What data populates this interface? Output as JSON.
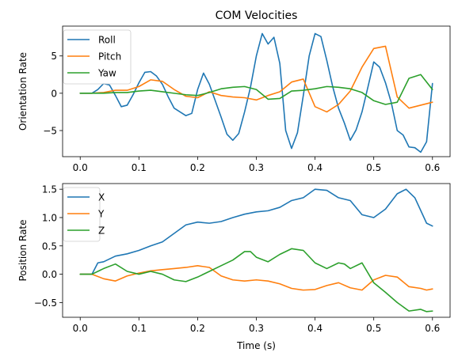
{
  "chart_data": [
    {
      "type": "line",
      "title": "COM Velocities",
      "xlabel": "",
      "ylabel": "Orientation Rate",
      "xlim": [
        -0.03,
        0.63
      ],
      "ylim": [
        -8.5,
        9.0
      ],
      "xticks": [
        0.0,
        0.1,
        0.2,
        0.3,
        0.4,
        0.5,
        0.6
      ],
      "xtick_labels": [
        "0.0",
        "0.1",
        "0.2",
        "0.3",
        "0.4",
        "0.5",
        "0.6"
      ],
      "yticks": [
        -5,
        0,
        5
      ],
      "ytick_labels": [
        "−5",
        "0",
        "5"
      ],
      "legend": "top-left",
      "series": [
        {
          "name": "Roll",
          "color": "#1f77b4",
          "x": [
            0.0,
            0.02,
            0.03,
            0.04,
            0.05,
            0.06,
            0.07,
            0.08,
            0.09,
            0.1,
            0.11,
            0.12,
            0.13,
            0.14,
            0.15,
            0.16,
            0.17,
            0.18,
            0.19,
            0.2,
            0.21,
            0.22,
            0.23,
            0.24,
            0.25,
            0.26,
            0.27,
            0.28,
            0.29,
            0.3,
            0.31,
            0.32,
            0.33,
            0.34,
            0.35,
            0.36,
            0.37,
            0.38,
            0.39,
            0.4,
            0.41,
            0.42,
            0.43,
            0.44,
            0.45,
            0.46,
            0.47,
            0.48,
            0.49,
            0.5,
            0.51,
            0.52,
            0.53,
            0.54,
            0.55,
            0.56,
            0.57,
            0.58,
            0.59,
            0.6
          ],
          "y": [
            0.0,
            0.0,
            0.5,
            1.3,
            1.1,
            -0.3,
            -1.8,
            -1.6,
            -0.2,
            1.4,
            2.8,
            2.9,
            2.3,
            1.2,
            -0.5,
            -2.0,
            -2.5,
            -3.0,
            -2.7,
            0.5,
            2.7,
            1.2,
            -1.0,
            -3.2,
            -5.5,
            -6.3,
            -5.4,
            -2.5,
            0.8,
            5.0,
            8.0,
            6.6,
            7.5,
            4.0,
            -5.0,
            -7.4,
            -5.3,
            -0.3,
            5.0,
            8.0,
            7.6,
            4.4,
            0.9,
            -2.0,
            -4.0,
            -6.3,
            -4.9,
            -2.5,
            0.8,
            4.2,
            3.5,
            1.4,
            -1.3,
            -5.0,
            -5.6,
            -7.2,
            -7.3,
            -7.9,
            -6.5,
            1.3
          ]
        },
        {
          "name": "Pitch",
          "color": "#ff7f0e",
          "x": [
            0.0,
            0.02,
            0.04,
            0.06,
            0.08,
            0.1,
            0.12,
            0.14,
            0.16,
            0.18,
            0.2,
            0.22,
            0.24,
            0.26,
            0.28,
            0.3,
            0.32,
            0.34,
            0.36,
            0.38,
            0.4,
            0.42,
            0.44,
            0.46,
            0.48,
            0.5,
            0.52,
            0.54,
            0.56,
            0.58,
            0.6
          ],
          "y": [
            0.0,
            0.0,
            0.1,
            0.4,
            0.4,
            0.9,
            1.8,
            1.6,
            0.5,
            -0.4,
            -0.6,
            0.2,
            -0.3,
            -0.5,
            -0.6,
            -0.9,
            -0.3,
            0.2,
            1.5,
            1.9,
            -1.8,
            -2.5,
            -1.5,
            0.3,
            3.5,
            6.0,
            6.3,
            -0.5,
            -2.0,
            -1.6,
            -1.2
          ]
        },
        {
          "name": "Yaw",
          "color": "#2ca02c",
          "x": [
            0.0,
            0.02,
            0.04,
            0.06,
            0.08,
            0.1,
            0.12,
            0.14,
            0.16,
            0.18,
            0.2,
            0.22,
            0.24,
            0.26,
            0.28,
            0.3,
            0.32,
            0.34,
            0.36,
            0.38,
            0.4,
            0.42,
            0.44,
            0.46,
            0.48,
            0.5,
            0.52,
            0.54,
            0.56,
            0.58,
            0.6
          ],
          "y": [
            0.0,
            0.0,
            0.0,
            0.1,
            0.1,
            0.3,
            0.4,
            0.2,
            0.0,
            -0.2,
            -0.3,
            0.1,
            0.6,
            0.8,
            0.9,
            0.5,
            -0.8,
            -0.7,
            0.3,
            0.4,
            0.6,
            0.9,
            0.8,
            0.6,
            0.1,
            -1.0,
            -1.5,
            -1.2,
            2.0,
            2.5,
            0.5
          ]
        }
      ]
    },
    {
      "type": "line",
      "title": "",
      "xlabel": "Time (s)",
      "ylabel": "Position Rate",
      "xlim": [
        -0.03,
        0.63
      ],
      "ylim": [
        -0.76,
        1.6
      ],
      "xticks": [
        0.0,
        0.1,
        0.2,
        0.3,
        0.4,
        0.5,
        0.6
      ],
      "xtick_labels": [
        "0.0",
        "0.1",
        "0.2",
        "0.3",
        "0.4",
        "0.5",
        "0.6"
      ],
      "yticks": [
        -0.5,
        0.0,
        0.5,
        1.0,
        1.5
      ],
      "ytick_labels": [
        "−0.5",
        "0.0",
        "0.5",
        "1.0",
        "1.5"
      ],
      "legend": "top-left",
      "series": [
        {
          "name": "X",
          "color": "#1f77b4",
          "x": [
            0.0,
            0.02,
            0.03,
            0.04,
            0.06,
            0.08,
            0.1,
            0.12,
            0.14,
            0.16,
            0.18,
            0.2,
            0.22,
            0.24,
            0.26,
            0.28,
            0.3,
            0.32,
            0.34,
            0.36,
            0.38,
            0.4,
            0.42,
            0.44,
            0.46,
            0.48,
            0.5,
            0.52,
            0.54,
            0.555,
            0.57,
            0.59,
            0.6
          ],
          "y": [
            0.0,
            0.0,
            0.2,
            0.22,
            0.32,
            0.36,
            0.42,
            0.5,
            0.57,
            0.72,
            0.87,
            0.92,
            0.9,
            0.93,
            1.0,
            1.06,
            1.1,
            1.12,
            1.18,
            1.3,
            1.35,
            1.5,
            1.48,
            1.35,
            1.3,
            1.05,
            1.0,
            1.15,
            1.42,
            1.5,
            1.35,
            0.9,
            0.85
          ]
        },
        {
          "name": "Y",
          "color": "#ff7f0e",
          "x": [
            0.0,
            0.02,
            0.04,
            0.06,
            0.08,
            0.1,
            0.12,
            0.14,
            0.16,
            0.18,
            0.2,
            0.22,
            0.24,
            0.26,
            0.28,
            0.3,
            0.32,
            0.34,
            0.36,
            0.38,
            0.4,
            0.42,
            0.44,
            0.46,
            0.48,
            0.5,
            0.52,
            0.54,
            0.56,
            0.58,
            0.59,
            0.6
          ],
          "y": [
            0.0,
            0.0,
            -0.08,
            -0.12,
            -0.03,
            0.02,
            0.06,
            0.08,
            0.1,
            0.12,
            0.15,
            0.12,
            -0.03,
            -0.1,
            -0.12,
            -0.1,
            -0.12,
            -0.17,
            -0.25,
            -0.28,
            -0.27,
            -0.2,
            -0.15,
            -0.24,
            -0.28,
            -0.1,
            -0.02,
            -0.05,
            -0.22,
            -0.25,
            -0.28,
            -0.26
          ]
        },
        {
          "name": "Z",
          "color": "#2ca02c",
          "x": [
            0.0,
            0.02,
            0.04,
            0.06,
            0.08,
            0.1,
            0.12,
            0.14,
            0.16,
            0.18,
            0.2,
            0.22,
            0.24,
            0.26,
            0.28,
            0.29,
            0.3,
            0.32,
            0.34,
            0.36,
            0.38,
            0.4,
            0.42,
            0.44,
            0.45,
            0.46,
            0.48,
            0.5,
            0.52,
            0.54,
            0.56,
            0.58,
            0.59,
            0.6
          ],
          "y": [
            0.0,
            0.0,
            0.1,
            0.18,
            0.05,
            0.0,
            0.05,
            0.0,
            -0.1,
            -0.13,
            -0.05,
            0.05,
            0.15,
            0.25,
            0.4,
            0.4,
            0.3,
            0.22,
            0.35,
            0.45,
            0.42,
            0.2,
            0.1,
            0.2,
            0.18,
            0.1,
            0.2,
            -0.15,
            -0.32,
            -0.5,
            -0.65,
            -0.62,
            -0.66,
            -0.65
          ]
        }
      ]
    }
  ]
}
